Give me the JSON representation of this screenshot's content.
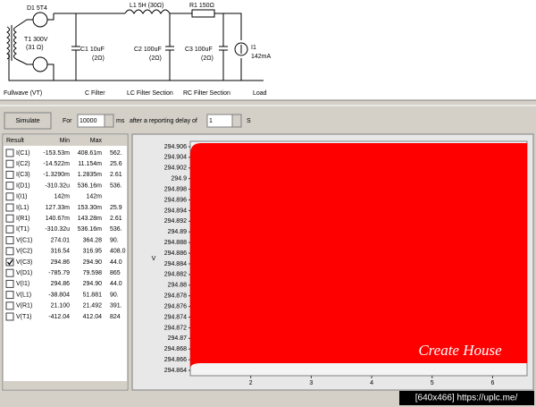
{
  "circuit": {
    "d1": "D1 5T4",
    "t1": "T1 300V",
    "t1_r": "(31 Ω)",
    "l1": "L1 5H (30Ω)",
    "r1": "R1 150Ω",
    "c1": "C1 10uF",
    "c1_r": "(2Ω)",
    "c2": "C2 100uF",
    "c2_r": "(2Ω)",
    "c3": "C3 100uF",
    "c3_r": "(2Ω)",
    "i1": "I1",
    "i1_v": "142mA",
    "sections": [
      "Fullwave (VT)",
      "C Filter",
      "LC Filter Section",
      "RC Filter Section",
      "Load"
    ]
  },
  "toolbar": {
    "button": "Simulate",
    "for": "For",
    "duration": "10000",
    "unit_ms": "ms",
    "delay_text": "after a reporting delay of",
    "delay": "1",
    "unit_s": "S"
  },
  "results": {
    "columns": [
      "Result",
      "Min",
      "Max"
    ],
    "rows": [
      {
        "name": "I(C1)",
        "min": "-153.53m",
        "max": "408.61m",
        "range": "562.",
        "checked": false
      },
      {
        "name": "I(C2)",
        "min": "-14.522m",
        "max": "11.154m",
        "range": "25.6",
        "checked": false
      },
      {
        "name": "I(C3)",
        "min": "-1.3290m",
        "max": "1.2835m",
        "range": "2.61",
        "checked": false
      },
      {
        "name": "I(D1)",
        "min": "-310.32u",
        "max": "536.16m",
        "range": "536.",
        "checked": false
      },
      {
        "name": "I(I1)",
        "min": "142m",
        "max": "142m",
        "range": null,
        "checked": false
      },
      {
        "name": "I(L1)",
        "min": "127.33m",
        "max": "153.30m",
        "range": "25.9",
        "checked": false
      },
      {
        "name": "I(R1)",
        "min": "140.67m",
        "max": "143.28m",
        "range": "2.61",
        "checked": false
      },
      {
        "name": "I(T1)",
        "min": "-310.32u",
        "max": "536.16m",
        "range": "536.",
        "checked": false
      },
      {
        "name": "V(C1)",
        "min": "274.01",
        "max": "364.28",
        "range": "90.",
        "checked": false
      },
      {
        "name": "V(C2)",
        "min": "316.54",
        "max": "316.95",
        "range": "408.0",
        "checked": false
      },
      {
        "name": "V(C3)",
        "min": "294.86",
        "max": "294.90",
        "range": "44.0",
        "checked": true
      },
      {
        "name": "V(D1)",
        "min": "-785.79",
        "max": "79.598",
        "range": "865",
        "checked": false
      },
      {
        "name": "V(I1)",
        "min": "294.86",
        "max": "294.90",
        "range": "44.0",
        "checked": false
      },
      {
        "name": "V(L1)",
        "min": "-38.804",
        "max": "51.881",
        "range": "90.",
        "checked": false
      },
      {
        "name": "V(R1)",
        "min": "21.100",
        "max": "21.492",
        "range": "391.",
        "checked": false
      },
      {
        "name": "V(T1)",
        "min": "-412.04",
        "max": "412.04",
        "range": "824",
        "checked": false
      }
    ]
  },
  "chart_data": {
    "type": "area",
    "y_label": "V",
    "color": "#ff0000",
    "xlim": [
      1,
      6.57
    ],
    "xticks": [
      2,
      3,
      4,
      5,
      6
    ],
    "ylim": [
      294.863,
      294.907
    ],
    "yticks": [
      294.906,
      294.904,
      294.902,
      294.9,
      294.898,
      294.896,
      294.894,
      294.892,
      294.89,
      294.888,
      294.886,
      294.884,
      294.882,
      294.88,
      294.878,
      294.876,
      294.874,
      294.872,
      294.87,
      294.868,
      294.866,
      294.864
    ]
  },
  "watermark": "Create House",
  "footer": "[640x466] https://uplc.me/"
}
